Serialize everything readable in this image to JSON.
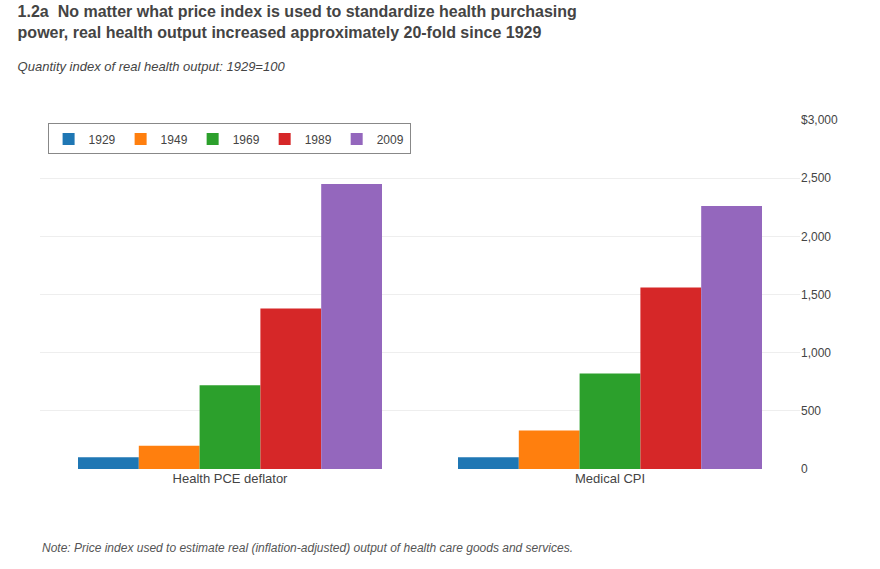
{
  "chart_data": {
    "type": "bar",
    "title": "1.2a  No matter what price index is used to standardize health purchasing\npower, real health output increased approximately 20-fold since 1929",
    "subtitle": "Quantity index of real health output: 1929=100",
    "annotations": [
      "Note: Price index used to estimate real (inflation-adjusted) output of health care goods and services."
    ],
    "categories": [
      "Health PCE deflator",
      "Medical CPI"
    ],
    "series": [
      {
        "name": "1929",
        "values": [
          100,
          100
        ]
      },
      {
        "name": "1949",
        "values": [
          200,
          330
        ]
      },
      {
        "name": "1969",
        "values": [
          720,
          820
        ]
      },
      {
        "name": "1989",
        "values": [
          1380,
          1560
        ]
      },
      {
        "name": "2009",
        "values": [
          2450,
          2260
        ]
      }
    ],
    "ylim": [
      0,
      3000
    ],
    "yticks": [
      0,
      500,
      {
        "value": 1000,
        "label": "1,000"
      },
      {
        "value": 1500,
        "label": "1,500"
      },
      {
        "value": 2000,
        "label": "2,000"
      },
      {
        "value": 2500,
        "label": "2,500"
      },
      {
        "value": 3000,
        "label": "$3,000"
      }
    ],
    "grid": true,
    "legend": "upper left"
  }
}
